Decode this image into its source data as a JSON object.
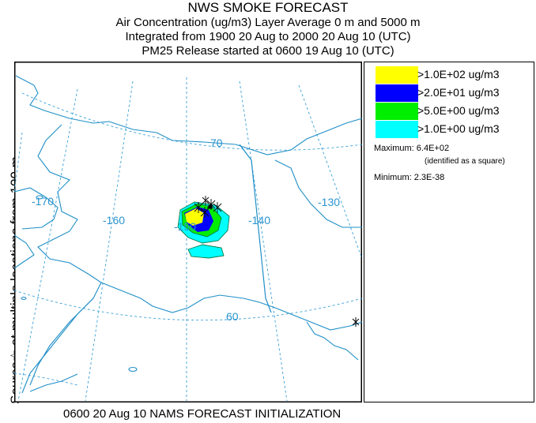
{
  "header": {
    "title": "NWS SMOKE FORECAST",
    "line2": "Air Concentration (ug/m3) Layer Average    0 m and  5000 m",
    "line3": "Integrated from 1900 20 Aug to 2000 20 Aug 10 (UTC)",
    "line4": "PM25 Release started at 0600 19 Aug 10 (UTC)"
  },
  "side_label": "Source☆ at multiple locations from  100 m",
  "footer": "0600 20 Aug 10 NAMS FORECAST INITIALIZATION",
  "map": {
    "lat_labels": [
      "70",
      "60"
    ],
    "lon_labels": [
      "-170",
      "-160",
      "-150",
      "-140",
      "-130"
    ]
  },
  "legend": {
    "items": [
      {
        "label": ">1.0E+02 ug/m3",
        "color": "#ffff00"
      },
      {
        "label": ">2.0E+01 ug/m3",
        "color": "#0000ff"
      },
      {
        "label": ">5.0E+00 ug/m3",
        "color": "#00ee00"
      },
      {
        "label": ">1.0E+00 ug/m3",
        "color": "#00ffff"
      }
    ],
    "maximum": "Maximum: 6.4E+02",
    "max_note": "(identified as a square)",
    "minimum": "Minimum: 2.3E-38"
  },
  "colors": {
    "coast": "#1f8fc7",
    "grid": "#3aa0d6",
    "label": "#2a94cf"
  }
}
